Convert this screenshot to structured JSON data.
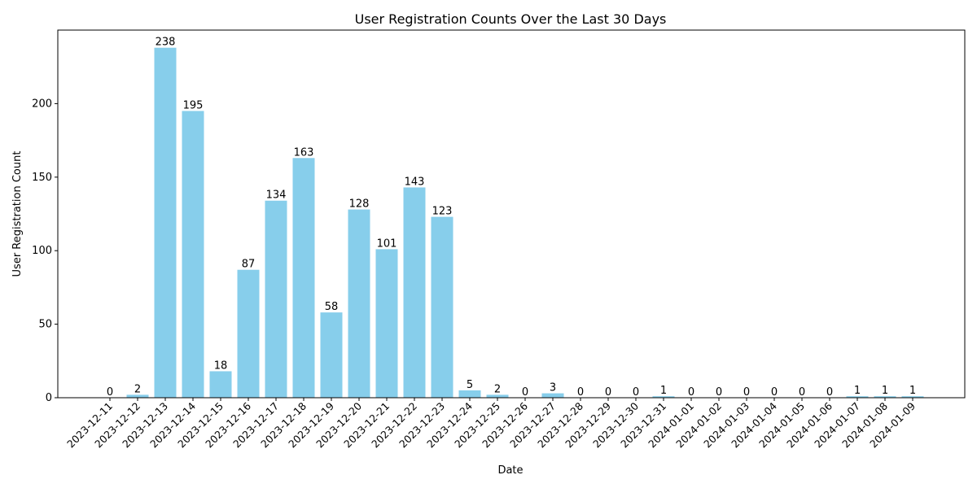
{
  "chart_data": {
    "type": "bar",
    "title": "User Registration Counts Over the Last 30 Days",
    "xlabel": "Date",
    "ylabel": "User Registration Count",
    "ylim": [
      0,
      250
    ],
    "yticks": [
      0,
      50,
      100,
      150,
      200
    ],
    "grid": false,
    "bar_color": "#87CEEB",
    "categories": [
      "2023-12-11",
      "2023-12-12",
      "2023-12-13",
      "2023-12-14",
      "2023-12-15",
      "2023-12-16",
      "2023-12-17",
      "2023-12-18",
      "2023-12-19",
      "2023-12-20",
      "2023-12-21",
      "2023-12-22",
      "2023-12-23",
      "2023-12-24",
      "2023-12-25",
      "2023-12-26",
      "2023-12-27",
      "2023-12-28",
      "2023-12-29",
      "2023-12-30",
      "2023-12-31",
      "2024-01-01",
      "2024-01-02",
      "2024-01-03",
      "2024-01-04",
      "2024-01-05",
      "2024-01-06",
      "2024-01-07",
      "2024-01-08",
      "2024-01-09"
    ],
    "values": [
      0,
      2,
      238,
      195,
      18,
      87,
      134,
      163,
      58,
      128,
      101,
      143,
      123,
      5,
      2,
      0,
      3,
      0,
      0,
      0,
      1,
      0,
      0,
      0,
      0,
      0,
      0,
      1,
      1,
      1
    ]
  }
}
